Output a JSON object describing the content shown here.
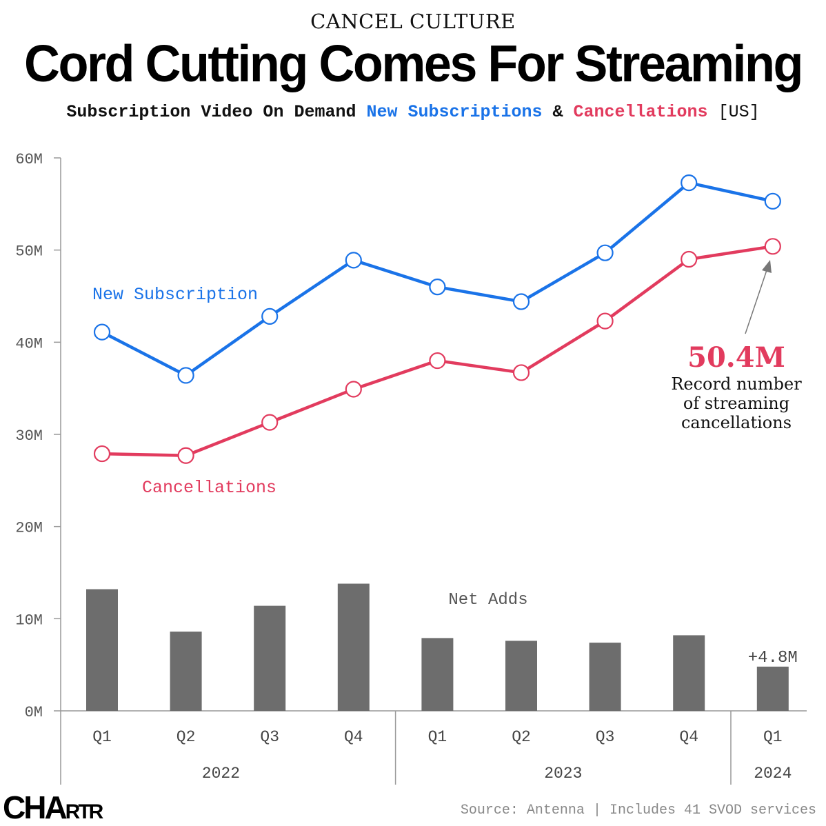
{
  "kicker": "CANCEL CULTURE",
  "title": "Cord Cutting Comes For Streaming",
  "subtitle": {
    "prefix": "Subscription Video On Demand ",
    "blue": "New Subscriptions",
    "amp": " & ",
    "red": "Cancellations",
    "suffix": " [US]"
  },
  "logo": "CHARTR",
  "source": "Source: Antenna | Includes 41 SVOD services",
  "colors": {
    "new": "#1a73e8",
    "cancel": "#e23b5e",
    "bars": "#6d6d6d",
    "axis": "#999999"
  },
  "chart_data": {
    "type": "line",
    "ylim": [
      0,
      60
    ],
    "yticks": [
      "0M",
      "10M",
      "20M",
      "30M",
      "40M",
      "50M",
      "60M"
    ],
    "categories": [
      "Q1",
      "Q2",
      "Q3",
      "Q4",
      "Q1",
      "Q2",
      "Q3",
      "Q4",
      "Q1"
    ],
    "years": [
      {
        "label": "2022",
        "span": 4
      },
      {
        "label": "2023",
        "span": 4
      },
      {
        "label": "2024",
        "span": 1
      }
    ],
    "series": [
      {
        "name": "New Subscription",
        "type": "line",
        "values": [
          41.1,
          36.4,
          42.8,
          48.9,
          46.0,
          44.4,
          49.7,
          57.3,
          55.3
        ]
      },
      {
        "name": "Cancellations",
        "type": "line",
        "values": [
          27.9,
          27.7,
          31.3,
          34.9,
          38.0,
          36.7,
          42.3,
          49.0,
          50.4
        ]
      },
      {
        "name": "Net Adds",
        "type": "bar",
        "values": [
          13.2,
          8.6,
          11.4,
          13.8,
          7.9,
          7.6,
          7.4,
          8.2,
          4.8
        ]
      }
    ],
    "annotations": {
      "bar_label": "+4.8M",
      "record_value": "50.4M",
      "record_text": [
        "Record number",
        "of streaming",
        "cancellations"
      ]
    }
  }
}
